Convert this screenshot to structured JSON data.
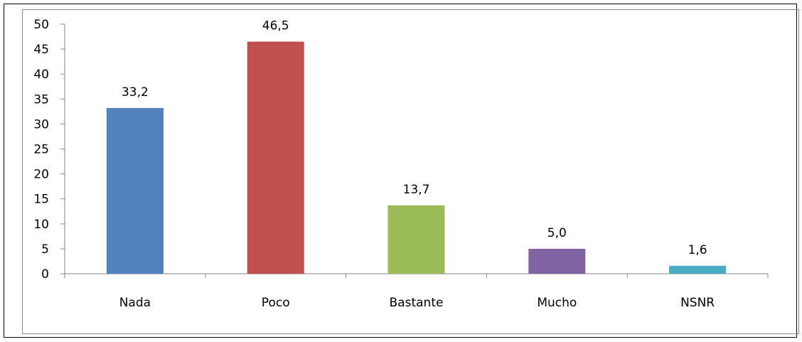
{
  "chart_data": {
    "type": "bar",
    "categories": [
      "Nada",
      "Poco",
      "Bastante",
      "Mucho",
      "NSNR"
    ],
    "values": [
      33.2,
      46.5,
      13.7,
      5.0,
      1.6
    ],
    "value_labels": [
      "33,2",
      "46,5",
      "13,7",
      "5,0",
      "1,6"
    ],
    "colors": [
      "#4f81bd",
      "#c0504d",
      "#9bbb59",
      "#8064a2",
      "#4bacc6"
    ],
    "title": "",
    "xlabel": "",
    "ylabel": "",
    "ylim": [
      0,
      50
    ],
    "yticks": [
      0,
      5,
      10,
      15,
      20,
      25,
      30,
      35,
      40,
      45,
      50
    ],
    "grid": false,
    "legend": "none"
  }
}
